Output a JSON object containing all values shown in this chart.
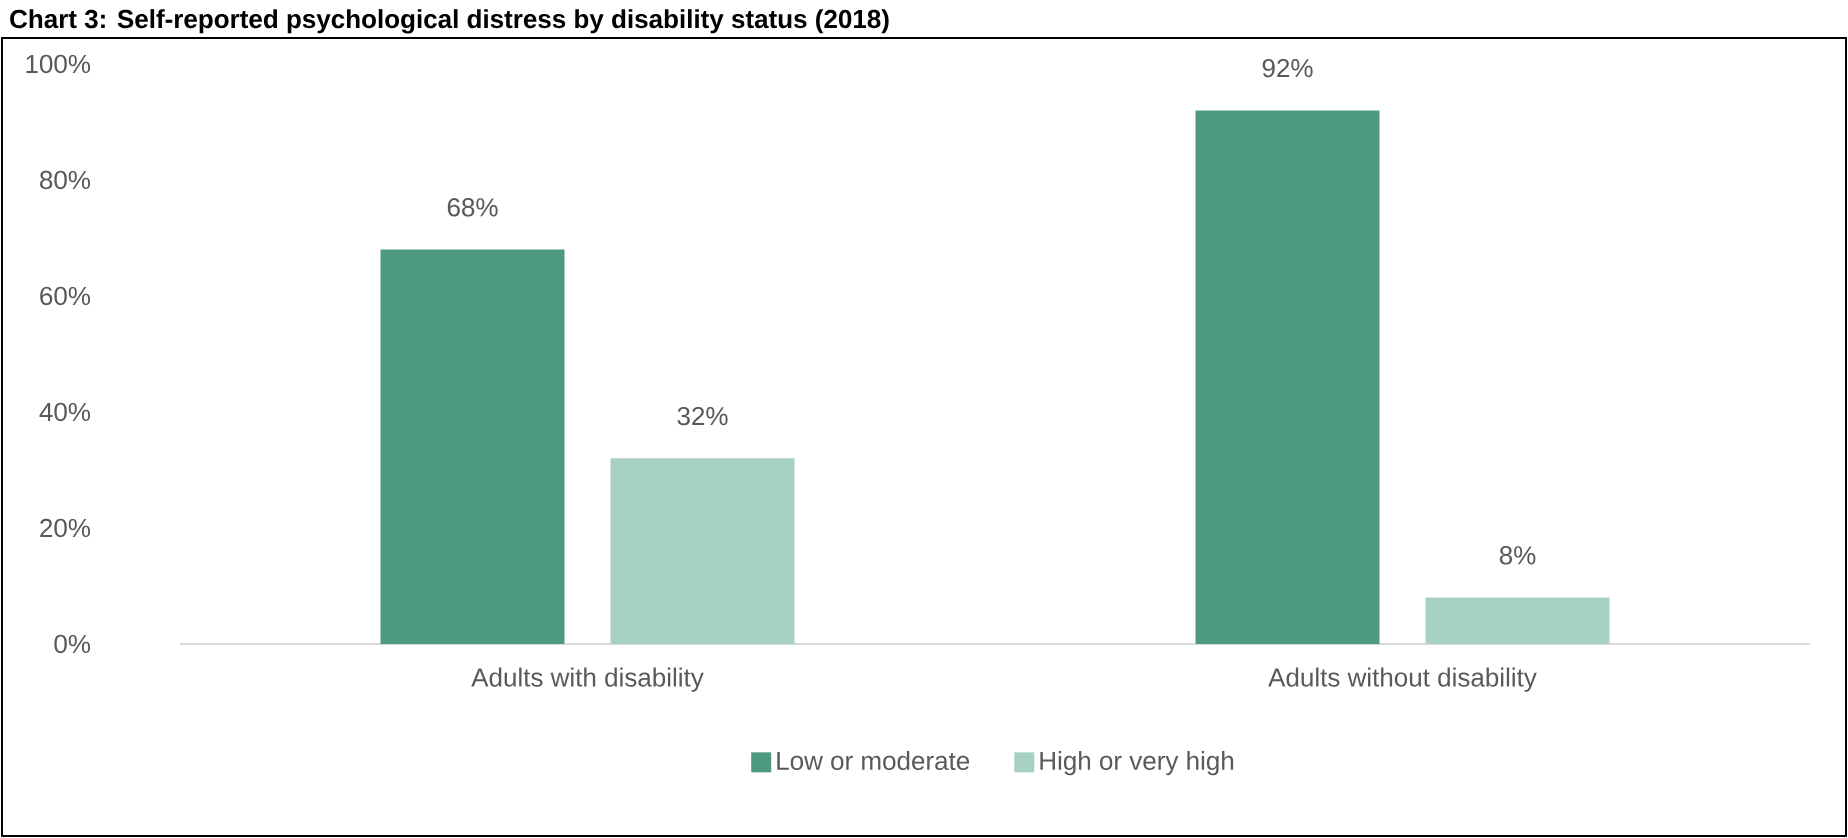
{
  "chart_data": {
    "type": "bar",
    "title": "Chart 3: Self-reported psychological distress by disability status (2018)",
    "categories": [
      "Adults with disability",
      "Adults without disability"
    ],
    "series": [
      {
        "name": "Low or moderate",
        "color": "#4e9a80",
        "values": [
          68,
          92
        ],
        "value_labels": [
          "68%",
          "92%"
        ]
      },
      {
        "name": "High or very high",
        "color": "#a6d0c2",
        "values": [
          32,
          8
        ],
        "value_labels": [
          "32%",
          "8%"
        ]
      }
    ],
    "ylim": [
      0,
      100
    ],
    "yticks": [
      {
        "value": 0,
        "label": "0%"
      },
      {
        "value": 20,
        "label": "20%"
      },
      {
        "value": 40,
        "label": "40%"
      },
      {
        "value": 60,
        "label": "60%"
      },
      {
        "value": 80,
        "label": "80%"
      },
      {
        "value": 100,
        "label": "100%"
      }
    ],
    "legend": "bottom"
  }
}
